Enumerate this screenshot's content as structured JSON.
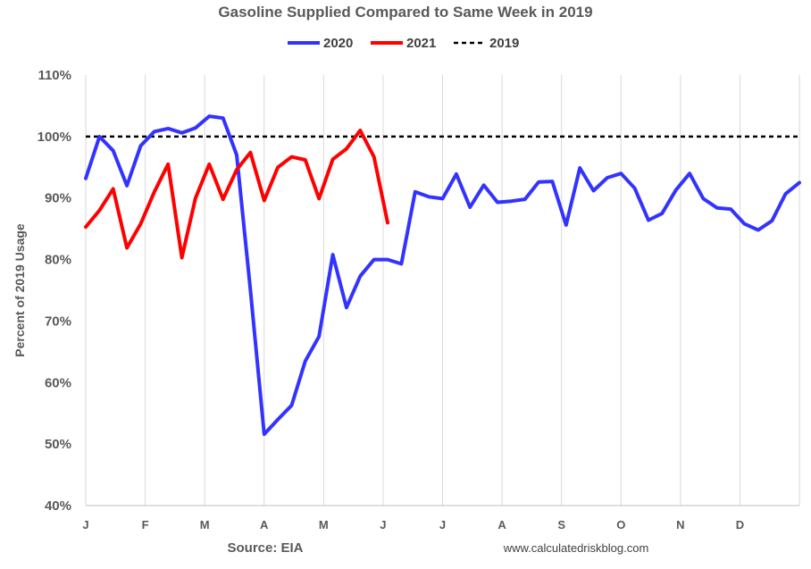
{
  "chart_data": {
    "type": "line",
    "title": "Gasoline Supplied Compared to Same Week in 2019",
    "ylabel": "Percent of 2019 Usage",
    "xlabel": "",
    "ylim": [
      40,
      110
    ],
    "y_ticks": [
      "40%",
      "50%",
      "60%",
      "70%",
      "80%",
      "90%",
      "100%",
      "110%"
    ],
    "x_tick_labels": [
      "J",
      "F",
      "M",
      "A",
      "M",
      "J",
      "J",
      "A",
      "S",
      "O",
      "N",
      "D"
    ],
    "x_range_weeks": [
      1,
      53
    ],
    "grid": "vertical",
    "legend_position": "top",
    "reference_line": {
      "name": "2019",
      "value": 100,
      "color": "#000000",
      "style": "dashed"
    },
    "series": [
      {
        "name": "2020",
        "color": "#3333ff",
        "x": [
          1,
          2,
          3,
          4,
          5,
          6,
          7,
          8,
          9,
          10,
          11,
          12,
          13,
          14,
          15,
          16,
          17,
          18,
          19,
          20,
          21,
          22,
          23,
          24,
          25,
          26,
          27,
          28,
          29,
          30,
          31,
          32,
          33,
          34,
          35,
          36,
          37,
          38,
          39,
          40,
          41,
          42,
          43,
          44,
          45,
          46,
          47,
          48,
          49,
          50,
          51,
          52,
          53
        ],
        "values": [
          93.2,
          100.0,
          97.7,
          92.0,
          98.5,
          100.8,
          101.3,
          100.6,
          101.4,
          103.3,
          103.0,
          97.0,
          75.0,
          51.6,
          54.0,
          56.3,
          63.5,
          67.5,
          80.8,
          72.2,
          77.3,
          80.0,
          80.0,
          79.3,
          91.0,
          90.2,
          89.9,
          93.9,
          88.5,
          92.1,
          89.3,
          89.5,
          89.8,
          92.6,
          92.7,
          85.6,
          94.9,
          91.2,
          93.3,
          94.0,
          91.6,
          86.4,
          87.5,
          91.3,
          94.0,
          89.9,
          88.4,
          88.2,
          85.8,
          84.8,
          86.3,
          90.7,
          92.5
        ]
      },
      {
        "name": "2021",
        "color": "#ff0000",
        "x": [
          1,
          2,
          3,
          4,
          5,
          6,
          7,
          8,
          9,
          10,
          11,
          12,
          13,
          14,
          15,
          16,
          17,
          18,
          19,
          20,
          21,
          22,
          23
        ],
        "values": [
          85.3,
          88.0,
          91.5,
          81.9,
          85.8,
          91.0,
          95.5,
          80.3,
          90.0,
          95.5,
          89.8,
          94.6,
          97.4,
          89.6,
          95.0,
          96.7,
          96.2,
          89.9,
          96.3,
          98.0,
          101.0,
          96.7,
          86.0
        ]
      }
    ]
  },
  "legend": {
    "items": [
      {
        "label": "2020",
        "color": "#3333ff",
        "style": "solid"
      },
      {
        "label": "2021",
        "color": "#ff0000",
        "style": "solid"
      },
      {
        "label": "2019",
        "color": "#000000",
        "style": "dashed"
      }
    ]
  },
  "footer": {
    "source": "Source: EIA",
    "credit": "www.calculatedriskblog.com"
  }
}
